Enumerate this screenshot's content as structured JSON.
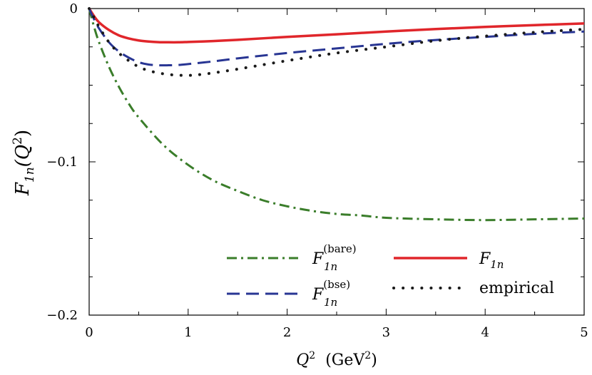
{
  "chart_data": {
    "type": "line",
    "xlabel": {
      "var": "Q",
      "sup": "2",
      "unit_open": "(GeV",
      "unit_sup": "2",
      "unit_close": ")"
    },
    "ylabel": {
      "F": "F",
      "sub": "1n",
      "open": "(Q",
      "sup": "2",
      "close": ")"
    },
    "xlim": [
      0,
      5
    ],
    "ylim": [
      -0.2,
      0
    ],
    "xticks": [
      0,
      1,
      2,
      3,
      4,
      5
    ],
    "xtick_labels": [
      "0",
      "1",
      "2",
      "3",
      "4",
      "5"
    ],
    "yticks": [
      0,
      -0.1,
      -0.2
    ],
    "ytick_labels": [
      "0",
      "−0.1",
      "−0.2"
    ],
    "grid": false,
    "legend_position": "bottom-center",
    "series": [
      {
        "key": "bare",
        "name": {
          "F": "F",
          "sub": "1n",
          "sup": "(bare)"
        },
        "style": "dash-dot",
        "color": "#3a7d2a",
        "x": [
          0,
          0.05,
          0.1,
          0.2,
          0.3,
          0.4,
          0.5,
          0.75,
          1.0,
          1.25,
          1.5,
          1.75,
          2.0,
          2.25,
          2.5,
          2.75,
          3.0,
          3.5,
          4.0,
          4.5,
          5.0
        ],
        "y": [
          0,
          -0.012,
          -0.022,
          -0.038,
          -0.051,
          -0.062,
          -0.071,
          -0.089,
          -0.102,
          -0.112,
          -0.119,
          -0.125,
          -0.129,
          -0.132,
          -0.134,
          -0.135,
          -0.1365,
          -0.1375,
          -0.138,
          -0.1375,
          -0.137
        ]
      },
      {
        "key": "bse",
        "name": {
          "F": "F",
          "sub": "1n",
          "sup": "(bse)"
        },
        "style": "dashed",
        "color": "#283593",
        "x": [
          0,
          0.05,
          0.1,
          0.2,
          0.3,
          0.4,
          0.5,
          0.6,
          0.7,
          0.8,
          0.9,
          1.0,
          1.25,
          1.5,
          2.0,
          2.5,
          3.0,
          3.5,
          4.0,
          4.5,
          5.0
        ],
        "y": [
          0,
          -0.007,
          -0.013,
          -0.022,
          -0.028,
          -0.032,
          -0.035,
          -0.0365,
          -0.037,
          -0.037,
          -0.0368,
          -0.0362,
          -0.0345,
          -0.0325,
          -0.029,
          -0.026,
          -0.023,
          -0.0205,
          -0.0185,
          -0.0165,
          -0.015
        ]
      },
      {
        "key": "total",
        "name": {
          "F": "F",
          "sub": "1n",
          "sup": ""
        },
        "style": "solid",
        "color": "#e0262b",
        "x": [
          0,
          0.05,
          0.1,
          0.2,
          0.3,
          0.4,
          0.5,
          0.6,
          0.7,
          0.8,
          0.9,
          1.0,
          1.25,
          1.5,
          2.0,
          2.5,
          3.0,
          3.5,
          4.0,
          4.5,
          5.0
        ],
        "y": [
          0,
          -0.005,
          -0.009,
          -0.014,
          -0.0175,
          -0.0195,
          -0.0208,
          -0.0215,
          -0.0219,
          -0.022,
          -0.022,
          -0.0218,
          -0.0212,
          -0.0204,
          -0.0185,
          -0.0168,
          -0.015,
          -0.0134,
          -0.012,
          -0.0108,
          -0.0097
        ]
      },
      {
        "key": "empirical",
        "name": {
          "F": "",
          "sub": "",
          "sup": "",
          "text": "empirical"
        },
        "style": "dotted",
        "color": "#1a1a1a",
        "x": [
          0,
          0.05,
          0.1,
          0.2,
          0.3,
          0.4,
          0.5,
          0.6,
          0.7,
          0.8,
          0.9,
          1.0,
          1.1,
          1.25,
          1.5,
          2.0,
          2.5,
          3.0,
          3.5,
          4.0,
          4.5,
          5.0
        ],
        "y": [
          0,
          -0.006,
          -0.012,
          -0.022,
          -0.029,
          -0.034,
          -0.038,
          -0.0405,
          -0.042,
          -0.043,
          -0.0435,
          -0.0436,
          -0.0432,
          -0.042,
          -0.0395,
          -0.034,
          -0.029,
          -0.025,
          -0.021,
          -0.018,
          -0.0155,
          -0.0135
        ]
      }
    ]
  }
}
